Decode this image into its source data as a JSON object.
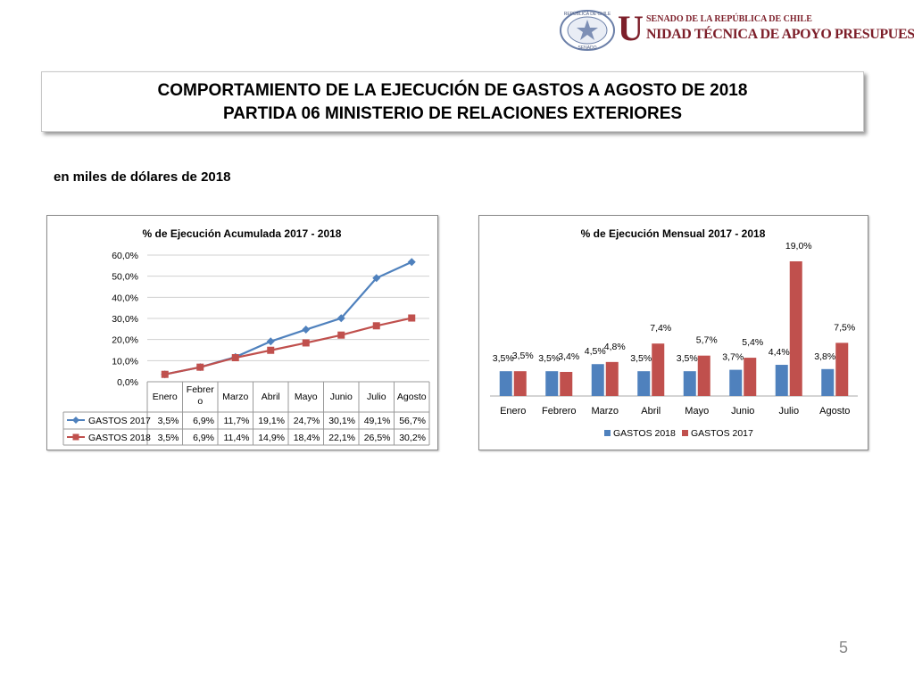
{
  "header": {
    "logo_line1": "SENADO DE LA REPÚBLICA DE CHILE",
    "logo_big_letter": "U",
    "logo_line2": "NIDAD TÉCNICA DE APOYO PRESUPUESTARIO",
    "seal_text_top": "REPÚBLICA DE CHILE",
    "seal_text_bottom": "SENADO"
  },
  "title": {
    "line1": "COMPORTAMIENTO DE LA EJECUCIÓN DE GASTOS A AGOSTO DE 2018",
    "line2": "PARTIDA 06 MINISTERIO DE RELACIONES EXTERIORES"
  },
  "subtitle": "en miles de dólares de 2018",
  "page_number": "5",
  "colors": {
    "blue": "#4f81bd",
    "red": "#c0504d",
    "grid": "#d0d0d0",
    "brand": "#7d1f2a"
  },
  "chart_data": [
    {
      "type": "line",
      "title": "% de Ejecución Acumulada 2017 - 2018",
      "categories": [
        "Enero",
        "Febrero",
        "Marzo",
        "Abril",
        "Mayo",
        "Junio",
        "Julio",
        "Agosto"
      ],
      "category_lines": [
        [
          "Enero"
        ],
        [
          "Febrer",
          "o"
        ],
        [
          "Marzo"
        ],
        [
          "Abril"
        ],
        [
          "Mayo"
        ],
        [
          "Junio"
        ],
        [
          "Julio"
        ],
        [
          "Agosto"
        ]
      ],
      "yticks": [
        "0,0%",
        "10,0%",
        "20,0%",
        "30,0%",
        "40,0%",
        "50,0%",
        "60,0%"
      ],
      "ylim": [
        0,
        60
      ],
      "grid": true,
      "legend": "data-table",
      "series": [
        {
          "name": "GASTOS 2017",
          "color": "#4f81bd",
          "marker": "diamond",
          "values": [
            3.5,
            6.9,
            11.7,
            19.1,
            24.7,
            30.1,
            49.1,
            56.7
          ],
          "labels": [
            "3,5%",
            "6,9%",
            "11,7%",
            "19,1%",
            "24,7%",
            "30,1%",
            "49,1%",
            "56,7%"
          ]
        },
        {
          "name": "GASTOS 2018",
          "color": "#c0504d",
          "marker": "square",
          "values": [
            3.5,
            6.9,
            11.4,
            14.9,
            18.4,
            22.1,
            26.5,
            30.2
          ],
          "labels": [
            "3,5%",
            "6,9%",
            "11,4%",
            "14,9%",
            "18,4%",
            "22,1%",
            "26,5%",
            "30,2%"
          ]
        }
      ]
    },
    {
      "type": "bar",
      "title": "% de Ejecución Mensual 2017 - 2018",
      "categories": [
        "Enero",
        "Febrero",
        "Marzo",
        "Abril",
        "Mayo",
        "Junio",
        "Julio",
        "Agosto"
      ],
      "ylim": [
        0,
        19.0
      ],
      "grid": false,
      "legend": "bottom",
      "series": [
        {
          "name": "GASTOS 2018",
          "color": "#4f81bd",
          "values": [
            3.5,
            3.5,
            4.5,
            3.5,
            3.5,
            3.7,
            4.4,
            3.8
          ],
          "labels": [
            "3,5%",
            "3,5%",
            "4,5%",
            "3,5%",
            "3,5%",
            "3,7%",
            "4,4%",
            "3,8%"
          ]
        },
        {
          "name": "GASTOS 2017",
          "color": "#c0504d",
          "values": [
            3.5,
            3.4,
            4.8,
            7.4,
            5.7,
            5.4,
            19.0,
            7.5
          ],
          "labels": [
            "3,5%",
            "3,4%",
            "4,8%",
            "7,4%",
            "5,7%",
            "5,4%",
            "19,0%",
            "7,5%"
          ]
        }
      ]
    }
  ]
}
